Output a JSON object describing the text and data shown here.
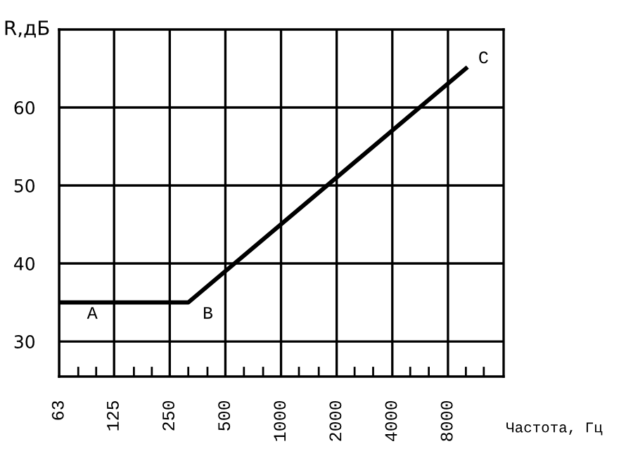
{
  "chart_data": {
    "type": "line",
    "xlabel": "Частота, Гц",
    "ylabel": "R,дБ",
    "log": "x",
    "x": [
      63,
      315,
      10000
    ],
    "series": [
      {
        "color": "#000000",
        "values": [
          35,
          35,
          65
        ]
      }
    ],
    "xlim": [
      63,
      16000
    ],
    "xticks": [
      63,
      {
        "value": 80,
        "label": null
      },
      {
        "value": 100,
        "label": null
      },
      125,
      {
        "value": 160,
        "label": null
      },
      {
        "value": 200,
        "label": null
      },
      250,
      {
        "value": 315,
        "label": null
      },
      {
        "value": 400,
        "label": null
      },
      500,
      {
        "value": 630,
        "label": null
      },
      {
        "value": 800,
        "label": null
      },
      1000,
      {
        "value": 1250,
        "label": null
      },
      {
        "value": 1600,
        "label": null
      },
      2000,
      {
        "value": 2500,
        "label": null
      },
      {
        "value": 3150,
        "label": null
      },
      4000,
      {
        "value": 5000,
        "label": null
      },
      {
        "value": 6300,
        "label": null
      },
      8000,
      {
        "value": 10000,
        "label": null
      },
      {
        "value": 12500,
        "label": null
      }
    ],
    "ylim": [
      25.5,
      70
    ],
    "yticks": [
      30,
      40,
      50,
      60
    ],
    "grid": true,
    "marker": "none",
    "line_style": "solid",
    "annotations": [
      {
        "text": "A",
        "x": 63,
        "y": 35
      },
      {
        "text": "B",
        "x": 315,
        "y": 35
      },
      {
        "text": "C",
        "x": 10000,
        "y": 65
      }
    ]
  }
}
